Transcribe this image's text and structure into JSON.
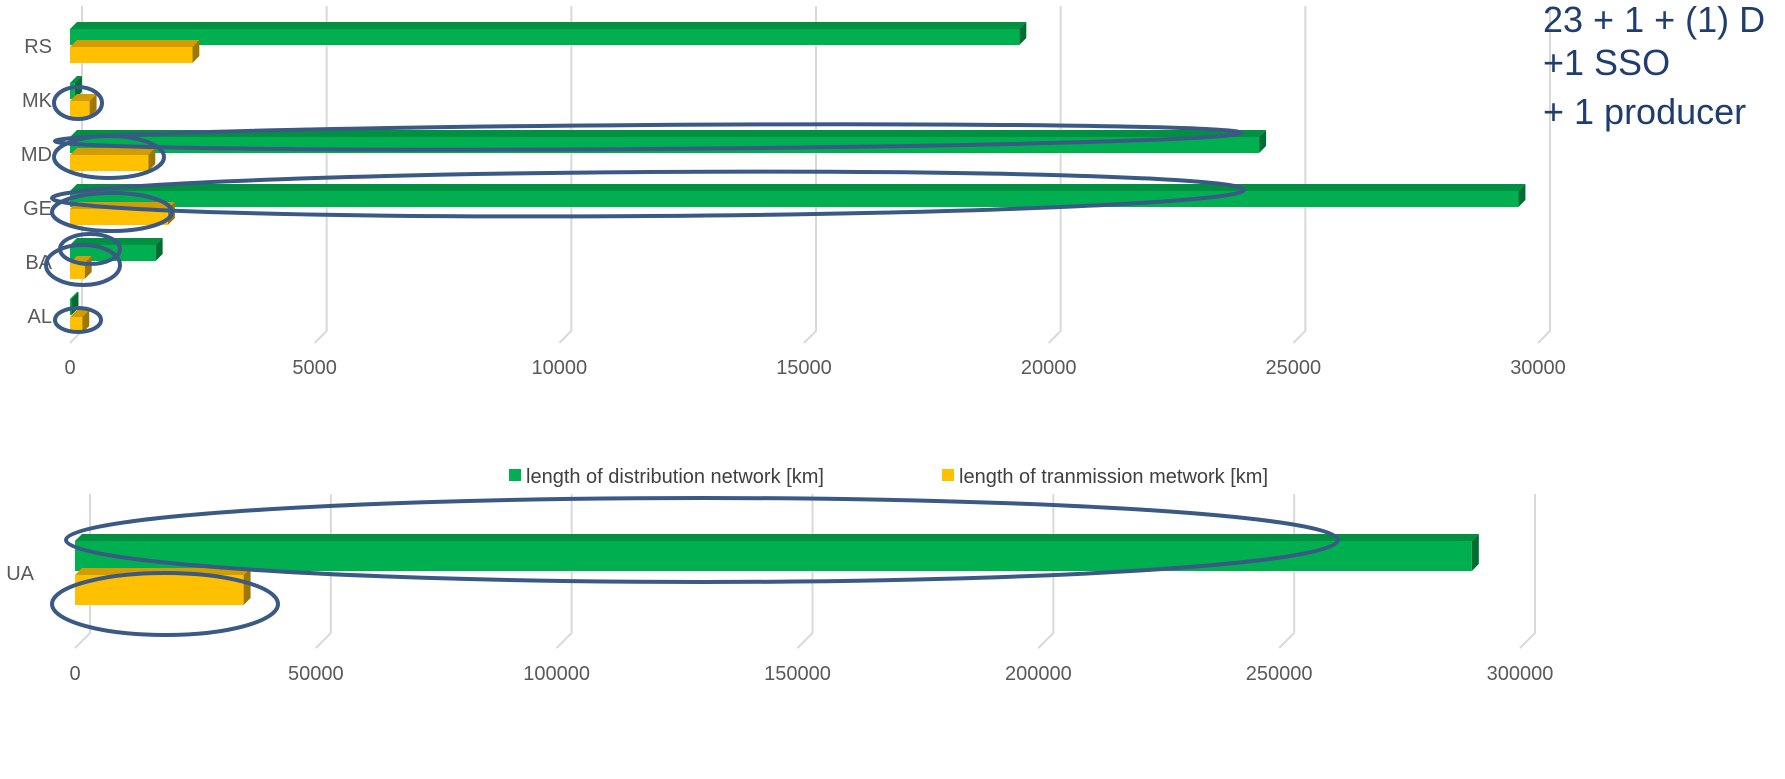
{
  "chart_data": [
    {
      "type": "bar",
      "orientation": "horizontal",
      "style": "3d",
      "categories": [
        "AL",
        "BA",
        "GE",
        "MD",
        "MK",
        "RS"
      ],
      "series": [
        {
          "name": "length of distribution network [km]",
          "color": "#00B050",
          "values": [
            30,
            1750,
            29600,
            24300,
            100,
            19400
          ]
        },
        {
          "name": "length of tranmission metwork [km]",
          "color": "#FFC000",
          "values": [
            250,
            300,
            2000,
            1600,
            400,
            2500
          ]
        }
      ],
      "xlim": [
        0,
        30000
      ],
      "xticks": [
        "0",
        "5000",
        "10000",
        "15000",
        "20000",
        "25000",
        "30000"
      ],
      "grid": true,
      "legend": "bottom",
      "highlighted_categories": [
        "AL",
        "BA",
        "GE",
        "MD",
        "MK"
      ]
    },
    {
      "type": "bar",
      "orientation": "horizontal",
      "style": "3d",
      "categories": [
        "UA"
      ],
      "series": [
        {
          "name": "length of distribution network [km]",
          "color": "#00B050",
          "values": [
            290000
          ]
        },
        {
          "name": "length of tranmission metwork [km]",
          "color": "#FFC000",
          "values": [
            35000
          ]
        }
      ],
      "xlim": [
        0,
        300000
      ],
      "xticks": [
        "0",
        "50000",
        "100000",
        "150000",
        "200000",
        "250000",
        "300000"
      ],
      "grid": true,
      "highlighted_categories": [
        "UA"
      ]
    }
  ],
  "annotation": {
    "lines": [
      "23 + 1 + (1) D",
      "+1 SSO",
      "+ 1 producer"
    ],
    "color": "#1F3D6E"
  },
  "highlight_color": "#3A5A85"
}
